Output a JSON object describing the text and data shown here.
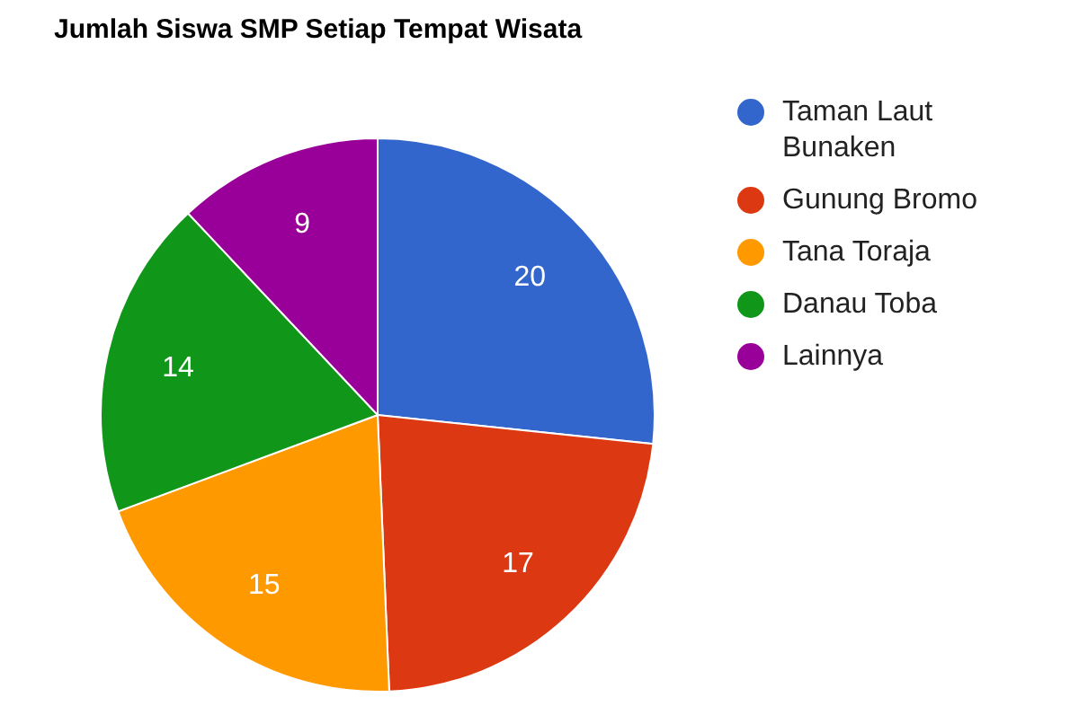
{
  "chart_data": {
    "type": "pie",
    "title": "Jumlah Siswa SMP Setiap Tempat Wisata",
    "categories": [
      "Taman Laut Bunaken",
      "Gunung Bromo",
      "Tana Toraja",
      "Danau Toba",
      "Lainnya"
    ],
    "values": [
      20,
      17,
      15,
      14,
      9
    ],
    "colors": [
      "#3366cc",
      "#dc3912",
      "#ff9900",
      "#109618",
      "#990099"
    ],
    "data_labels": true,
    "legend": "right"
  }
}
